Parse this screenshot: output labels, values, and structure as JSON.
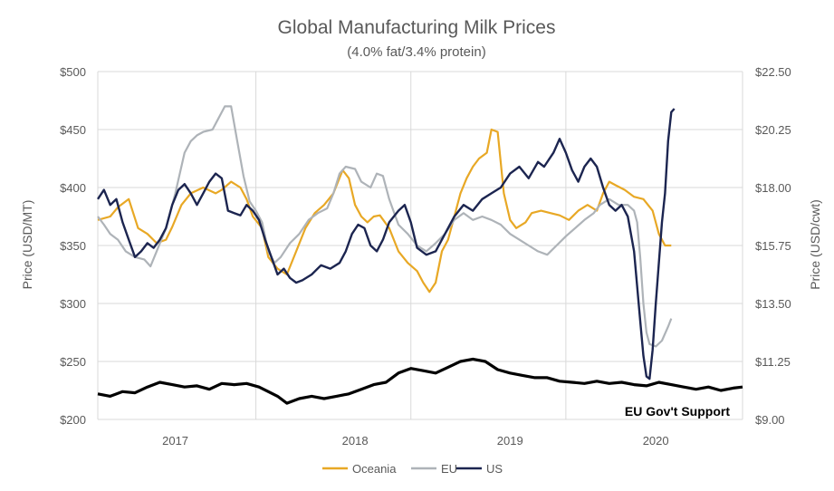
{
  "chart_data": {
    "type": "line",
    "title": "Global Manufacturing Milk Prices",
    "subtitle": "(4.0% fat/3.4% protein)",
    "ylabel_left": "Price (USD/MT)",
    "ylabel_right": "Price (USD/cwt)",
    "ylim_left": [
      200,
      500
    ],
    "ylim_right": [
      9.0,
      22.5
    ],
    "yticks_left": [
      "$500",
      "$450",
      "$400",
      "$350",
      "$300",
      "$250",
      "$200"
    ],
    "yticks_right": [
      "$22.50",
      "$20.25",
      "$18.00",
      "$15.75",
      "$13.50",
      "$11.25",
      "$9.00"
    ],
    "x_range": [
      2016.42,
      2020.58
    ],
    "x_tick_labels": [
      {
        "label": "2017",
        "x": 2016.92
      },
      {
        "label": "2018",
        "x": 2018.08
      },
      {
        "label": "2019",
        "x": 2019.08
      },
      {
        "label": "2020",
        "x": 2020.02
      }
    ],
    "x_gridlines": [
      2016.42,
      2017.44,
      2018.44,
      2019.44,
      2020.58
    ],
    "annotation": "EU Gov't Support",
    "legend": [
      "Oceania",
      "EU",
      "US"
    ],
    "series": [
      {
        "name": "Oceania",
        "color": "#E8A825",
        "points": [
          [
            2016.42,
            372
          ],
          [
            2016.5,
            375
          ],
          [
            2016.55,
            383
          ],
          [
            2016.62,
            390
          ],
          [
            2016.68,
            365
          ],
          [
            2016.74,
            360
          ],
          [
            2016.8,
            352
          ],
          [
            2016.86,
            355
          ],
          [
            2016.9,
            366
          ],
          [
            2016.96,
            385
          ],
          [
            2017.02,
            395
          ],
          [
            2017.1,
            400
          ],
          [
            2017.18,
            395
          ],
          [
            2017.22,
            398
          ],
          [
            2017.28,
            405
          ],
          [
            2017.34,
            400
          ],
          [
            2017.38,
            390
          ],
          [
            2017.42,
            375
          ],
          [
            2017.48,
            365
          ],
          [
            2017.52,
            340
          ],
          [
            2017.58,
            330
          ],
          [
            2017.64,
            325
          ],
          [
            2017.7,
            345
          ],
          [
            2017.76,
            365
          ],
          [
            2017.82,
            378
          ],
          [
            2017.88,
            385
          ],
          [
            2017.94,
            395
          ],
          [
            2018.0,
            415
          ],
          [
            2018.04,
            408
          ],
          [
            2018.08,
            385
          ],
          [
            2018.12,
            375
          ],
          [
            2018.16,
            370
          ],
          [
            2018.2,
            375
          ],
          [
            2018.24,
            376
          ],
          [
            2018.3,
            365
          ],
          [
            2018.36,
            345
          ],
          [
            2018.42,
            335
          ],
          [
            2018.48,
            328
          ],
          [
            2018.52,
            318
          ],
          [
            2018.56,
            310
          ],
          [
            2018.6,
            318
          ],
          [
            2018.64,
            345
          ],
          [
            2018.68,
            355
          ],
          [
            2018.72,
            375
          ],
          [
            2018.76,
            395
          ],
          [
            2018.8,
            408
          ],
          [
            2018.84,
            418
          ],
          [
            2018.88,
            425
          ],
          [
            2018.93,
            430
          ],
          [
            2018.96,
            450
          ],
          [
            2019.0,
            448
          ],
          [
            2019.04,
            395
          ],
          [
            2019.08,
            372
          ],
          [
            2019.12,
            365
          ],
          [
            2019.18,
            370
          ],
          [
            2019.22,
            378
          ],
          [
            2019.28,
            380
          ],
          [
            2019.34,
            378
          ],
          [
            2019.4,
            376
          ],
          [
            2019.46,
            372
          ],
          [
            2019.52,
            380
          ],
          [
            2019.58,
            385
          ],
          [
            2019.64,
            380
          ],
          [
            2019.68,
            395
          ],
          [
            2019.72,
            405
          ],
          [
            2019.76,
            402
          ],
          [
            2019.82,
            398
          ],
          [
            2019.88,
            392
          ],
          [
            2019.94,
            390
          ],
          [
            2020.0,
            380
          ],
          [
            2020.04,
            360
          ],
          [
            2020.08,
            350
          ],
          [
            2020.12,
            350
          ]
        ]
      },
      {
        "name": "EU",
        "color": "#AEB3B8",
        "points": [
          [
            2016.42,
            375
          ],
          [
            2016.46,
            368
          ],
          [
            2016.5,
            360
          ],
          [
            2016.55,
            355
          ],
          [
            2016.6,
            345
          ],
          [
            2016.66,
            340
          ],
          [
            2016.72,
            338
          ],
          [
            2016.76,
            332
          ],
          [
            2016.8,
            345
          ],
          [
            2016.86,
            365
          ],
          [
            2016.92,
            395
          ],
          [
            2016.98,
            430
          ],
          [
            2017.02,
            440
          ],
          [
            2017.06,
            445
          ],
          [
            2017.1,
            448
          ],
          [
            2017.16,
            450
          ],
          [
            2017.2,
            460
          ],
          [
            2017.24,
            470
          ],
          [
            2017.28,
            470
          ],
          [
            2017.32,
            440
          ],
          [
            2017.36,
            410
          ],
          [
            2017.4,
            388
          ],
          [
            2017.44,
            380
          ],
          [
            2017.48,
            370
          ],
          [
            2017.52,
            345
          ],
          [
            2017.56,
            335
          ],
          [
            2017.6,
            340
          ],
          [
            2017.66,
            352
          ],
          [
            2017.72,
            360
          ],
          [
            2017.78,
            372
          ],
          [
            2017.84,
            378
          ],
          [
            2017.9,
            382
          ],
          [
            2017.94,
            395
          ],
          [
            2017.98,
            412
          ],
          [
            2018.02,
            418
          ],
          [
            2018.08,
            416
          ],
          [
            2018.12,
            405
          ],
          [
            2018.18,
            400
          ],
          [
            2018.22,
            412
          ],
          [
            2018.26,
            410
          ],
          [
            2018.3,
            390
          ],
          [
            2018.36,
            368
          ],
          [
            2018.42,
            360
          ],
          [
            2018.48,
            350
          ],
          [
            2018.54,
            345
          ],
          [
            2018.6,
            352
          ],
          [
            2018.66,
            360
          ],
          [
            2018.72,
            372
          ],
          [
            2018.78,
            378
          ],
          [
            2018.84,
            372
          ],
          [
            2018.9,
            375
          ],
          [
            2018.96,
            372
          ],
          [
            2019.02,
            368
          ],
          [
            2019.08,
            360
          ],
          [
            2019.14,
            355
          ],
          [
            2019.2,
            350
          ],
          [
            2019.26,
            345
          ],
          [
            2019.32,
            342
          ],
          [
            2019.38,
            350
          ],
          [
            2019.44,
            358
          ],
          [
            2019.5,
            365
          ],
          [
            2019.56,
            372
          ],
          [
            2019.62,
            378
          ],
          [
            2019.66,
            385
          ],
          [
            2019.72,
            390
          ],
          [
            2019.78,
            385
          ],
          [
            2019.84,
            385
          ],
          [
            2019.88,
            380
          ],
          [
            2019.9,
            370
          ],
          [
            2019.92,
            340
          ],
          [
            2019.94,
            300
          ],
          [
            2019.96,
            275
          ],
          [
            2019.98,
            265
          ],
          [
            2020.02,
            263
          ],
          [
            2020.06,
            268
          ],
          [
            2020.1,
            280
          ],
          [
            2020.12,
            287
          ]
        ]
      },
      {
        "name": "US",
        "color": "#1C2550",
        "points": [
          [
            2016.42,
            390
          ],
          [
            2016.46,
            398
          ],
          [
            2016.5,
            385
          ],
          [
            2016.54,
            390
          ],
          [
            2016.58,
            370
          ],
          [
            2016.62,
            355
          ],
          [
            2016.66,
            340
          ],
          [
            2016.7,
            345
          ],
          [
            2016.74,
            352
          ],
          [
            2016.78,
            348
          ],
          [
            2016.82,
            355
          ],
          [
            2016.86,
            365
          ],
          [
            2016.9,
            385
          ],
          [
            2016.94,
            398
          ],
          [
            2016.98,
            403
          ],
          [
            2017.02,
            395
          ],
          [
            2017.06,
            385
          ],
          [
            2017.1,
            395
          ],
          [
            2017.14,
            405
          ],
          [
            2017.18,
            412
          ],
          [
            2017.22,
            408
          ],
          [
            2017.26,
            380
          ],
          [
            2017.3,
            378
          ],
          [
            2017.34,
            376
          ],
          [
            2017.38,
            385
          ],
          [
            2017.42,
            380
          ],
          [
            2017.46,
            372
          ],
          [
            2017.5,
            355
          ],
          [
            2017.54,
            340
          ],
          [
            2017.58,
            325
          ],
          [
            2017.62,
            330
          ],
          [
            2017.66,
            322
          ],
          [
            2017.7,
            318
          ],
          [
            2017.74,
            320
          ],
          [
            2017.8,
            325
          ],
          [
            2017.86,
            333
          ],
          [
            2017.92,
            330
          ],
          [
            2017.98,
            335
          ],
          [
            2018.02,
            345
          ],
          [
            2018.06,
            360
          ],
          [
            2018.1,
            368
          ],
          [
            2018.14,
            365
          ],
          [
            2018.18,
            350
          ],
          [
            2018.22,
            345
          ],
          [
            2018.26,
            355
          ],
          [
            2018.3,
            370
          ],
          [
            2018.36,
            380
          ],
          [
            2018.4,
            385
          ],
          [
            2018.44,
            370
          ],
          [
            2018.48,
            348
          ],
          [
            2018.54,
            342
          ],
          [
            2018.6,
            345
          ],
          [
            2018.66,
            360
          ],
          [
            2018.72,
            375
          ],
          [
            2018.78,
            385
          ],
          [
            2018.84,
            380
          ],
          [
            2018.9,
            390
          ],
          [
            2018.96,
            395
          ],
          [
            2019.02,
            400
          ],
          [
            2019.08,
            412
          ],
          [
            2019.14,
            418
          ],
          [
            2019.2,
            408
          ],
          [
            2019.26,
            422
          ],
          [
            2019.3,
            418
          ],
          [
            2019.36,
            430
          ],
          [
            2019.4,
            442
          ],
          [
            2019.44,
            430
          ],
          [
            2019.48,
            415
          ],
          [
            2019.52,
            405
          ],
          [
            2019.56,
            418
          ],
          [
            2019.6,
            425
          ],
          [
            2019.64,
            418
          ],
          [
            2019.68,
            400
          ],
          [
            2019.72,
            385
          ],
          [
            2019.76,
            380
          ],
          [
            2019.8,
            385
          ],
          [
            2019.84,
            375
          ],
          [
            2019.88,
            345
          ],
          [
            2019.9,
            315
          ],
          [
            2019.92,
            285
          ],
          [
            2019.94,
            255
          ],
          [
            2019.96,
            237
          ],
          [
            2019.98,
            235
          ],
          [
            2020.0,
            260
          ],
          [
            2020.02,
            300
          ],
          [
            2020.04,
            335
          ],
          [
            2020.06,
            370
          ],
          [
            2020.08,
            395
          ],
          [
            2020.1,
            440
          ],
          [
            2020.12,
            465
          ],
          [
            2020.14,
            468
          ]
        ]
      },
      {
        "name": "EU Gov't Support",
        "color": "#000000",
        "points": [
          [
            2016.42,
            222
          ],
          [
            2016.5,
            220
          ],
          [
            2016.58,
            224
          ],
          [
            2016.66,
            223
          ],
          [
            2016.74,
            228
          ],
          [
            2016.82,
            232
          ],
          [
            2016.9,
            230
          ],
          [
            2016.98,
            228
          ],
          [
            2017.06,
            229
          ],
          [
            2017.14,
            226
          ],
          [
            2017.22,
            231
          ],
          [
            2017.3,
            230
          ],
          [
            2017.38,
            231
          ],
          [
            2017.46,
            228
          ],
          [
            2017.52,
            224
          ],
          [
            2017.58,
            220
          ],
          [
            2017.64,
            214
          ],
          [
            2017.72,
            218
          ],
          [
            2017.8,
            220
          ],
          [
            2017.88,
            218
          ],
          [
            2017.96,
            220
          ],
          [
            2018.04,
            222
          ],
          [
            2018.12,
            226
          ],
          [
            2018.2,
            230
          ],
          [
            2018.28,
            232
          ],
          [
            2018.36,
            240
          ],
          [
            2018.44,
            244
          ],
          [
            2018.52,
            242
          ],
          [
            2018.6,
            240
          ],
          [
            2018.68,
            245
          ],
          [
            2018.76,
            250
          ],
          [
            2018.84,
            252
          ],
          [
            2018.92,
            250
          ],
          [
            2019.0,
            243
          ],
          [
            2019.08,
            240
          ],
          [
            2019.16,
            238
          ],
          [
            2019.24,
            236
          ],
          [
            2019.32,
            236
          ],
          [
            2019.4,
            233
          ],
          [
            2019.48,
            232
          ],
          [
            2019.56,
            231
          ],
          [
            2019.64,
            233
          ],
          [
            2019.72,
            231
          ],
          [
            2019.8,
            232
          ],
          [
            2019.88,
            230
          ],
          [
            2019.96,
            229
          ],
          [
            2020.04,
            232
          ],
          [
            2020.12,
            230
          ],
          [
            2020.2,
            228
          ],
          [
            2020.28,
            226
          ],
          [
            2020.36,
            228
          ],
          [
            2020.44,
            225
          ],
          [
            2020.52,
            227
          ],
          [
            2020.58,
            228
          ]
        ]
      }
    ]
  }
}
